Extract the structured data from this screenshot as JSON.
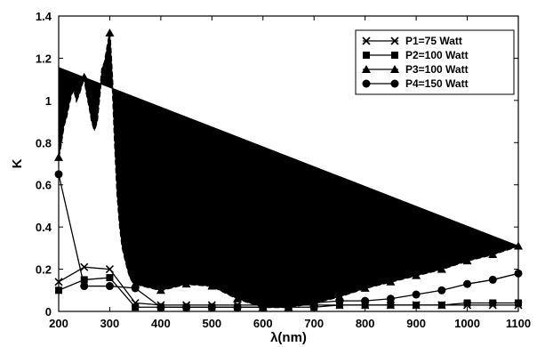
{
  "chart_data": {
    "type": "line",
    "xlabel": "λ(nm)",
    "ylabel": "K",
    "xlim": [
      200,
      1100
    ],
    "ylim": [
      0,
      1.4
    ],
    "xticks": [
      200,
      300,
      400,
      500,
      600,
      700,
      800,
      900,
      1000,
      1100
    ],
    "yticks": [
      0,
      0.2,
      0.4,
      0.6,
      0.8,
      1,
      1.2,
      1.4
    ],
    "ytick_labels": [
      "0",
      "0.2",
      "0.4",
      "0.6",
      "0.8",
      "1",
      "1.2",
      "1.4"
    ],
    "grid": false,
    "legend_position": "top-right",
    "series": [
      {
        "name": "P1=75 Watt",
        "marker": "x",
        "x": [
          200,
          250,
          300,
          350,
          400,
          450,
          500,
          550,
          600,
          650,
          700,
          750,
          800,
          850,
          900,
          950,
          1000,
          1050,
          1100
        ],
        "y": [
          0.14,
          0.21,
          0.2,
          0.04,
          0.03,
          0.03,
          0.03,
          0.03,
          0.03,
          0.03,
          0.03,
          0.03,
          0.03,
          0.03,
          0.03,
          0.03,
          0.03,
          0.03,
          0.03
        ]
      },
      {
        "name": "P2=100 Watt",
        "marker": "square",
        "x": [
          200,
          250,
          300,
          350,
          400,
          450,
          500,
          550,
          600,
          650,
          700,
          750,
          800,
          850,
          900,
          950,
          1000,
          1050,
          1100
        ],
        "y": [
          0.1,
          0.15,
          0.16,
          0.02,
          0.02,
          0.02,
          0.02,
          0.02,
          0.02,
          0.02,
          0.02,
          0.03,
          0.03,
          0.03,
          0.03,
          0.03,
          0.04,
          0.04,
          0.04
        ]
      },
      {
        "name": "P3=100 Watt",
        "marker": "triangle",
        "x": [
          200,
          250,
          300,
          350,
          400,
          450,
          500,
          550,
          600,
          650,
          700,
          750,
          800,
          850,
          900,
          950,
          1000,
          1050,
          1100
        ],
        "y": [
          0.73,
          1.11,
          1.32,
          0.13,
          0.1,
          0.13,
          0.12,
          0.06,
          0.02,
          0.02,
          0.04,
          0.07,
          0.11,
          0.14,
          0.17,
          0.2,
          0.24,
          0.27,
          0.31
        ]
      },
      {
        "name": "P4=150 Watt",
        "marker": "circle",
        "x": [
          200,
          250,
          300,
          350,
          400,
          450,
          500,
          550,
          600,
          650,
          700,
          750,
          800,
          850,
          900,
          950,
          1000,
          1050,
          1100
        ],
        "y": [
          0.65,
          0.12,
          0.12,
          0.11,
          0.02,
          0.02,
          0.02,
          0.02,
          0.02,
          0.03,
          0.04,
          0.05,
          0.05,
          0.06,
          0.08,
          0.1,
          0.13,
          0.15,
          0.18
        ]
      }
    ],
    "p3_dense": {
      "x": [
        200,
        205,
        210,
        215,
        220,
        225,
        230,
        235,
        240,
        245,
        250,
        255,
        260,
        265,
        270,
        275,
        280,
        285,
        290,
        295,
        300,
        305,
        310,
        315,
        320,
        325,
        330,
        335,
        340,
        345,
        350
      ],
      "y": [
        0.73,
        0.8,
        0.88,
        0.92,
        0.98,
        1.03,
        1.05,
        1.0,
        1.03,
        1.07,
        1.11,
        1.03,
        0.97,
        0.9,
        0.86,
        0.9,
        1.02,
        1.15,
        1.18,
        1.25,
        1.32,
        1.1,
        0.8,
        0.55,
        0.4,
        0.3,
        0.25,
        0.2,
        0.16,
        0.14,
        0.13
      ]
    }
  }
}
